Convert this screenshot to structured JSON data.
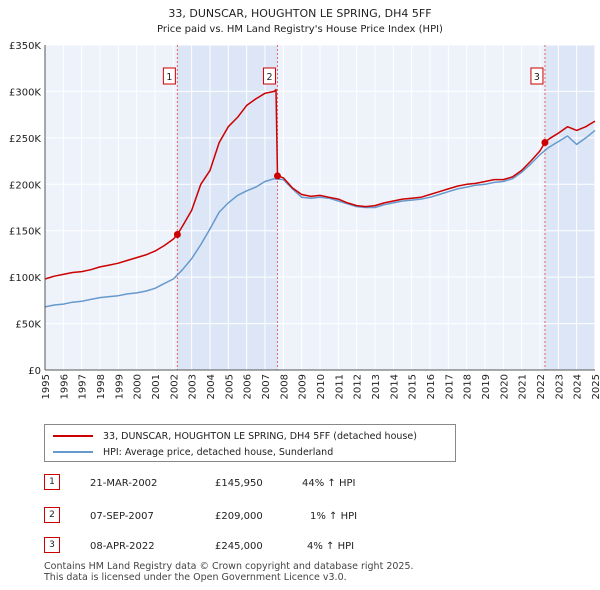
{
  "chart_data": {
    "type": "line",
    "title": "33, DUNSCAR, HOUGHTON LE SPRING, DH4 5FF",
    "subtitle": "Price paid vs. HM Land Registry's House Price Index (HPI)",
    "xlabel": "",
    "ylabel": "",
    "xlim": [
      1995,
      2025
    ],
    "ylim": [
      0,
      350000
    ],
    "grid": true,
    "x_ticks": [
      "1995",
      "1996",
      "1997",
      "1998",
      "1999",
      "2000",
      "2001",
      "2002",
      "2003",
      "2004",
      "2005",
      "2006",
      "2007",
      "2008",
      "2009",
      "2010",
      "2011",
      "2012",
      "2013",
      "2014",
      "2015",
      "2016",
      "2017",
      "2018",
      "2019",
      "2020",
      "2021",
      "2022",
      "2023",
      "2024",
      "2025"
    ],
    "y_ticks": [
      {
        "value": 0,
        "label": "£0"
      },
      {
        "value": 50000,
        "label": "£50K"
      },
      {
        "value": 100000,
        "label": "£100K"
      },
      {
        "value": 150000,
        "label": "£150K"
      },
      {
        "value": 200000,
        "label": "£200K"
      },
      {
        "value": 250000,
        "label": "£250K"
      },
      {
        "value": 300000,
        "label": "£300K"
      },
      {
        "value": 350000,
        "label": "£350K"
      }
    ],
    "shaded_periods": [
      [
        2002.22,
        2007.68
      ],
      [
        2022.27,
        2025
      ]
    ],
    "series": [
      {
        "name": "33, DUNSCAR, HOUGHTON LE SPRING, DH4 5FF (detached house)",
        "color": "#cc0000",
        "x": [
          1995,
          1995.5,
          1996,
          1996.5,
          1997,
          1997.5,
          1998,
          1998.5,
          1999,
          1999.5,
          2000,
          2000.5,
          2001,
          2001.5,
          2002,
          2002.22,
          2002.5,
          2003,
          2003.5,
          2004,
          2004.5,
          2005,
          2005.5,
          2006,
          2006.5,
          2007,
          2007.5,
          2007.6,
          2007.68,
          2008,
          2008.5,
          2009,
          2009.5,
          2010,
          2010.5,
          2011,
          2011.5,
          2012,
          2012.5,
          2013,
          2013.5,
          2014,
          2014.5,
          2015,
          2015.5,
          2016,
          2016.5,
          2017,
          2017.5,
          2018,
          2018.5,
          2019,
          2019.5,
          2020,
          2020.5,
          2021,
          2021.5,
          2022,
          2022.27,
          2022.5,
          2023,
          2023.5,
          2024,
          2024.5,
          2025
        ],
        "values": [
          98000,
          101000,
          103000,
          105000,
          106000,
          108000,
          111000,
          113000,
          115000,
          118000,
          121000,
          124000,
          128000,
          134000,
          141000,
          145950,
          155000,
          172000,
          200000,
          215000,
          245000,
          262000,
          272000,
          285000,
          292000,
          298000,
          300000,
          302000,
          209000,
          207000,
          196000,
          189000,
          187000,
          188000,
          186000,
          184000,
          180000,
          177000,
          176000,
          177000,
          180000,
          182000,
          184000,
          185000,
          186000,
          189000,
          192000,
          195000,
          198000,
          200000,
          201000,
          203000,
          205000,
          205000,
          208000,
          215000,
          225000,
          236000,
          245000,
          249000,
          255000,
          262000,
          258000,
          262000,
          268000
        ]
      },
      {
        "name": "HPI: Average price, detached house, Sunderland",
        "color": "#6699cc",
        "x": [
          1995,
          1995.5,
          1996,
          1996.5,
          1997,
          1997.5,
          1998,
          1998.5,
          1999,
          1999.5,
          2000,
          2000.5,
          2001,
          2001.5,
          2002,
          2002.5,
          2003,
          2003.5,
          2004,
          2004.5,
          2005,
          2005.5,
          2006,
          2006.5,
          2007,
          2007.5,
          2008,
          2008.5,
          2009,
          2009.5,
          2010,
          2010.5,
          2011,
          2011.5,
          2012,
          2012.5,
          2013,
          2013.5,
          2014,
          2014.5,
          2015,
          2015.5,
          2016,
          2016.5,
          2017,
          2017.5,
          2018,
          2018.5,
          2019,
          2019.5,
          2020,
          2020.5,
          2021,
          2021.5,
          2022,
          2022.5,
          2023,
          2023.5,
          2024,
          2024.5,
          2025
        ],
        "values": [
          68000,
          70000,
          71000,
          73000,
          74000,
          76000,
          78000,
          79000,
          80000,
          82000,
          83000,
          85000,
          88000,
          93000,
          98000,
          108000,
          120000,
          135000,
          152000,
          170000,
          180000,
          188000,
          193000,
          197000,
          203000,
          206000,
          205000,
          195000,
          186000,
          185000,
          186000,
          185000,
          182000,
          179000,
          176000,
          175000,
          175000,
          178000,
          180000,
          182000,
          183000,
          184000,
          186000,
          189000,
          192000,
          195000,
          197000,
          199000,
          200000,
          202000,
          203000,
          206000,
          213000,
          222000,
          232000,
          240000,
          246000,
          252000,
          243000,
          250000,
          258000
        ]
      }
    ],
    "markers": [
      {
        "label": "1",
        "x": 2002.22,
        "value": 145950
      },
      {
        "label": "2",
        "x": 2007.68,
        "value": 209000
      },
      {
        "label": "3",
        "x": 2022.27,
        "value": 245000
      }
    ]
  },
  "legend": {
    "items": [
      {
        "label": "33, DUNSCAR, HOUGHTON LE SPRING, DH4 5FF (detached house)",
        "color": "#cc0000"
      },
      {
        "label": "HPI: Average price, detached house, Sunderland",
        "color": "#6699cc"
      }
    ]
  },
  "transactions": [
    {
      "num": "1",
      "date": "21-MAR-2002",
      "price": "£145,950",
      "hpi": "44% ↑ HPI"
    },
    {
      "num": "2",
      "date": "07-SEP-2007",
      "price": "£209,000",
      "hpi": "1% ↑ HPI"
    },
    {
      "num": "3",
      "date": "08-APR-2022",
      "price": "£245,000",
      "hpi": "4% ↑ HPI"
    }
  ],
  "footer": {
    "line1": "Contains HM Land Registry data © Crown copyright and database right 2025.",
    "line2": "This data is licensed under the Open Government Licence v3.0."
  }
}
